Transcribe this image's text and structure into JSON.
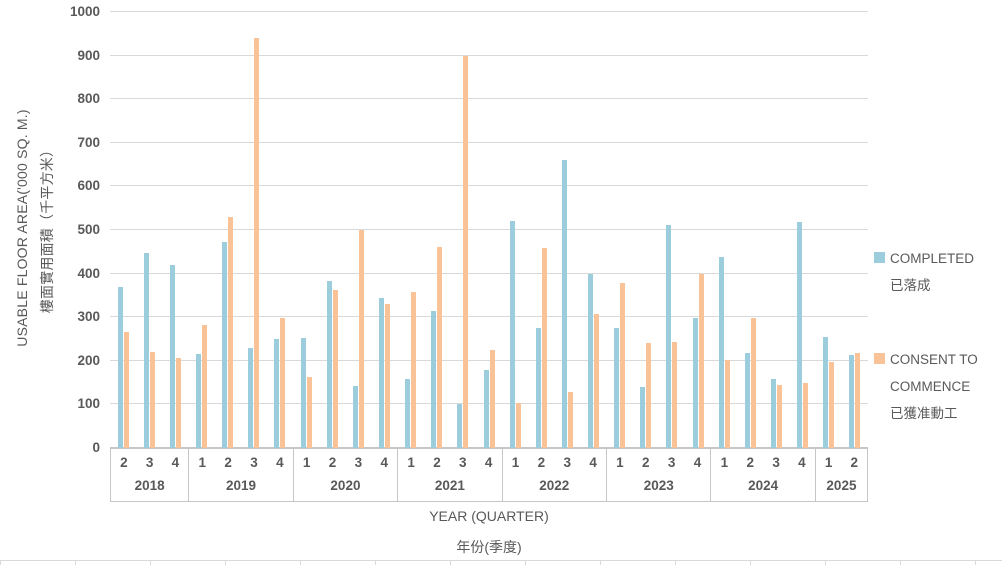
{
  "chart_data": {
    "type": "bar",
    "title": "",
    "y_axis_title_en": "USABLE FLOOR AREA('000 SQ. M.)",
    "y_axis_title_zh": "樓面實用面積（千平方米）",
    "x_axis_title_en": "YEAR (QUARTER)",
    "x_axis_title_zh": "年份(季度)",
    "ylim": [
      0,
      1000
    ],
    "y_tick_step": 100,
    "y_ticks": [
      "0",
      "100",
      "200",
      "300",
      "400",
      "500",
      "600",
      "700",
      "800",
      "900",
      "1000"
    ],
    "grid": true,
    "legend_position": "right",
    "colors": {
      "completed": "#9bcddc",
      "consent": "#fac397",
      "gridline": "#d9d9d9",
      "axis": "#c6c6c6",
      "text": "#595959"
    },
    "groups": [
      {
        "year": "2018",
        "quarters": [
          "2",
          "3",
          "4"
        ]
      },
      {
        "year": "2019",
        "quarters": [
          "1",
          "2",
          "3",
          "4"
        ]
      },
      {
        "year": "2020",
        "quarters": [
          "1",
          "2",
          "3",
          "4"
        ]
      },
      {
        "year": "2021",
        "quarters": [
          "1",
          "2",
          "3",
          "4"
        ]
      },
      {
        "year": "2022",
        "quarters": [
          "1",
          "2",
          "3",
          "4"
        ]
      },
      {
        "year": "2023",
        "quarters": [
          "1",
          "2",
          "3",
          "4"
        ]
      },
      {
        "year": "2024",
        "quarters": [
          "1",
          "2",
          "3",
          "4"
        ]
      },
      {
        "year": "2025",
        "quarters": [
          "1",
          "2"
        ]
      }
    ],
    "series": [
      {
        "name_en": "COMPLETED",
        "name_zh": "已落成",
        "values": [
          370,
          447,
          420,
          216,
          472,
          229,
          250,
          253,
          383,
          142,
          345,
          158,
          314,
          100,
          178,
          521,
          275,
          660,
          400,
          275,
          140,
          511,
          298,
          438,
          217,
          158,
          518,
          254,
          213
        ]
      },
      {
        "name_en": "CONSENT TO COMMENCE",
        "name_zh": "已獲准動工",
        "values": [
          267,
          220,
          207,
          282,
          529,
          940,
          299,
          163,
          362,
          500,
          330,
          357,
          460,
          900,
          224,
          103,
          459,
          129,
          308,
          379,
          241,
          243,
          399,
          201,
          298,
          145,
          149,
          198,
          218
        ]
      }
    ]
  },
  "legend": {
    "completed_en": "COMPLETED",
    "completed_zh": "已落成",
    "consent_line1": "CONSENT TO",
    "consent_line2": "COMMENCE",
    "consent_zh": "已獲准動工"
  }
}
